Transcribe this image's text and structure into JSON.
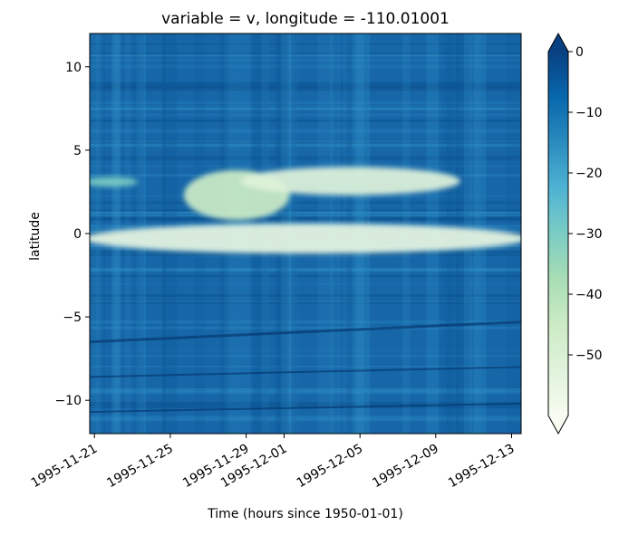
{
  "chart_data": {
    "type": "heatmap",
    "title": "variable = v, longitude = -110.01001",
    "xlabel": "Time (hours since 1950-01-01)",
    "ylabel": "latitude",
    "x_tick_labels": [
      "1995-11-21",
      "1995-11-25",
      "1995-11-29",
      "1995-12-01",
      "1995-12-05",
      "1995-12-09",
      "1995-12-13"
    ],
    "x_tick_dates": [
      "1995-11-21",
      "1995-11-25",
      "1995-11-29",
      "1995-12-01",
      "1995-12-05",
      "1995-12-09",
      "1995-12-13"
    ],
    "xlim": [
      "1995-11-20T18:00",
      "1995-12-13T12:00"
    ],
    "ylim": [
      -12,
      12
    ],
    "y_ticks": [
      10,
      5,
      0,
      -5,
      -10
    ],
    "y_tick_labels": [
      "10",
      "5",
      "0",
      "−5",
      "−10"
    ],
    "colorbar": {
      "colormap": "GnBu_r",
      "vmin": -60,
      "vmax": 0,
      "ticks": [
        0,
        -10,
        -20,
        -30,
        -40,
        -50
      ],
      "tick_labels": [
        "0",
        "−10",
        "−20",
        "−30",
        "−40",
        "−50"
      ],
      "extend": "both",
      "stops": [
        "#f7fcf0",
        "#e0f3db",
        "#ccebc5",
        "#a8ddb5",
        "#7bccc4",
        "#4eb3d3",
        "#2b8cbe",
        "#0868ac",
        "#084081"
      ]
    },
    "features": [
      {
        "lat": [
          -1.2,
          0.6
        ],
        "start": "1995-11-20T18:00",
        "end": "1995-12-13T12:00",
        "value": -55
      },
      {
        "lat": [
          0.8,
          3.8
        ],
        "start": "1995-11-26",
        "end": "1995-12-01",
        "value": -45
      },
      {
        "lat": [
          2.3,
          4.0
        ],
        "start": "1995-11-29",
        "end": "1995-12-10",
        "value": -52
      },
      {
        "lat": [
          2.8,
          3.4
        ],
        "start": "1995-11-20T18:00",
        "end": "1995-11-23",
        "value": -30
      }
    ]
  }
}
